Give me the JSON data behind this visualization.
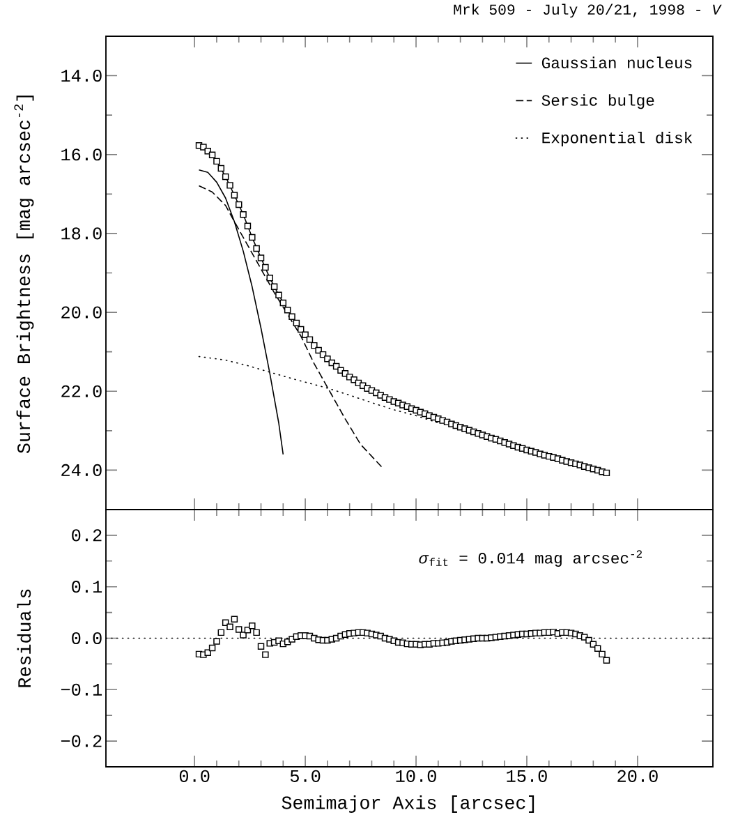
{
  "chart_data": [
    {
      "type": "scatter",
      "title": "Mrk 509 - July 20/21, 1998 - *V*",
      "ylabel": "Surface Brightness [mag arcsec$^{-2}$]",
      "xlim": [
        -4,
        23.4
      ],
      "ylim": [
        25,
        13
      ],
      "xticks": [
        0,
        5,
        10,
        15,
        20
      ],
      "yticks": [
        {
          "value": 14,
          "label": "14.0"
        },
        {
          "value": 16,
          "label": "16.0"
        },
        {
          "value": 18,
          "label": "18.0"
        },
        {
          "value": 20,
          "label": "20.0"
        },
        {
          "value": 22,
          "label": "22.0"
        },
        {
          "value": 24,
          "label": "24.0"
        }
      ],
      "tick_labels": "y",
      "legend": "top right",
      "series": [
        {
          "type": "line",
          "color": "#000000",
          "line_style": "solid",
          "name": "Gaussian nucleus",
          "x": [
            0.2,
            0.6,
            1.0,
            1.4,
            1.8,
            2.2,
            2.6,
            3.0,
            3.4,
            3.8,
            4.0
          ],
          "values": [
            16.39,
            16.45,
            16.7,
            17.1,
            17.7,
            18.45,
            19.35,
            20.4,
            21.55,
            22.8,
            23.6
          ]
        },
        {
          "type": "line",
          "color": "#000000",
          "line_style": "dashed",
          "name": "Sersic bulge",
          "x": [
            0.2,
            0.8,
            1.4,
            1.8,
            2.4,
            3.0,
            3.6,
            4.2,
            4.8,
            5.4,
            6.0,
            6.8,
            7.5,
            8.5
          ],
          "values": [
            16.79,
            16.95,
            17.29,
            17.7,
            18.3,
            18.9,
            19.5,
            20.05,
            20.6,
            21.3,
            21.9,
            22.7,
            23.35,
            23.95
          ]
        },
        {
          "type": "line",
          "color": "#000000",
          "line_style": "dotted",
          "name": "Exponential disk",
          "x": [
            0.2,
            1.4,
            2.4,
            3.3,
            4.6,
            6.0,
            7.0,
            8.0,
            9.0,
            10.0,
            11.0
          ],
          "values": [
            21.12,
            21.21,
            21.35,
            21.5,
            21.71,
            21.92,
            22.1,
            22.29,
            22.47,
            22.62,
            22.8
          ]
        },
        {
          "type": "line",
          "color": "#000000",
          "line_style": "solid",
          "x": [
            0.2,
            0.6,
            1.0,
            1.4,
            1.8,
            2.2,
            2.6,
            3.0,
            3.4,
            3.8,
            4.4,
            5.0,
            6.0,
            7.0,
            8.0,
            9.0,
            10.0,
            12.0,
            14.0,
            16.0,
            18.6
          ],
          "values": [
            15.77,
            15.91,
            16.17,
            16.56,
            17.03,
            17.52,
            18.1,
            18.62,
            19.13,
            19.56,
            20.11,
            20.57,
            21.18,
            21.64,
            21.98,
            22.26,
            22.48,
            22.91,
            23.3,
            23.65,
            24.07
          ]
        },
        {
          "color": "#000000",
          "marker": "square",
          "x": [
            0.2,
            0.4,
            0.6,
            0.8,
            1.0,
            1.2,
            1.4,
            1.6,
            1.8,
            2.0,
            2.2,
            2.4,
            2.6,
            2.8,
            3.0,
            3.2,
            3.4,
            3.6,
            3.8,
            4.0,
            4.2,
            4.4,
            4.6,
            4.8,
            5.0,
            5.2,
            5.4,
            5.6,
            5.8,
            6.0,
            6.2,
            6.4,
            6.6,
            6.8,
            7.0,
            7.2,
            7.4,
            7.6,
            7.8,
            8.0,
            8.2,
            8.4,
            8.6,
            8.8,
            9.0,
            9.2,
            9.4,
            9.6,
            9.8,
            10.0,
            10.2,
            10.4,
            10.6,
            10.8,
            11.0,
            11.2,
            11.4,
            11.6,
            11.8,
            12.0,
            12.2,
            12.4,
            12.6,
            12.8,
            13.0,
            13.2,
            13.4,
            13.6,
            13.8,
            14.0,
            14.2,
            14.4,
            14.6,
            14.8,
            15.0,
            15.2,
            15.4,
            15.6,
            15.8,
            16.0,
            16.2,
            16.4,
            16.6,
            16.8,
            17.0,
            17.2,
            17.4,
            17.6,
            17.8,
            18.0,
            18.2,
            18.4,
            18.6
          ],
          "values": [
            15.77,
            15.81,
            15.91,
            16.01,
            16.17,
            16.35,
            16.56,
            16.78,
            17.03,
            17.27,
            17.52,
            17.81,
            18.1,
            18.38,
            18.62,
            18.86,
            19.13,
            19.35,
            19.56,
            19.76,
            19.94,
            20.11,
            20.27,
            20.43,
            20.57,
            20.69,
            20.84,
            20.96,
            21.07,
            21.18,
            21.28,
            21.37,
            21.47,
            21.55,
            21.64,
            21.71,
            21.79,
            21.86,
            21.93,
            21.98,
            22.04,
            22.1,
            22.16,
            22.21,
            22.26,
            22.3,
            22.35,
            22.39,
            22.44,
            22.48,
            22.53,
            22.57,
            22.62,
            22.66,
            22.7,
            22.74,
            22.78,
            22.83,
            22.87,
            22.91,
            22.95,
            22.99,
            23.03,
            23.07,
            23.11,
            23.15,
            23.19,
            23.22,
            23.26,
            23.3,
            23.34,
            23.38,
            23.42,
            23.45,
            23.49,
            23.52,
            23.55,
            23.59,
            23.62,
            23.65,
            23.68,
            23.71,
            23.75,
            23.78,
            23.81,
            23.84,
            23.87,
            23.91,
            23.94,
            23.97,
            24.0,
            24.04,
            24.07
          ]
        }
      ]
    },
    {
      "type": "scatter",
      "xlabel": "Semimajor Axis [arcsec]",
      "ylabel": "Residuals",
      "annotations": [
        "*σ*$_{fit}$ = 0.014 mag arcsec$^{-2}$"
      ],
      "xlim": [
        -4,
        23.4
      ],
      "ylim": [
        -0.25,
        0.25
      ],
      "xticks": [
        {
          "value": 0,
          "label": "0.0"
        },
        {
          "value": 5,
          "label": "5.0"
        },
        {
          "value": 10,
          "label": "10.0"
        },
        {
          "value": 15,
          "label": "15.0"
        },
        {
          "value": 20,
          "label": "20.0"
        }
      ],
      "yticks": [
        {
          "value": -0.2,
          "label": "−0.2"
        },
        {
          "value": -0.1,
          "label": "−0.1"
        },
        {
          "value": 0,
          "label": "0.0"
        },
        {
          "value": 0.1,
          "label": "0.1"
        },
        {
          "value": 0.2,
          "label": "0.2"
        }
      ],
      "ref_lines": [
        {
          "axis": "y",
          "value": 0,
          "color": "#000000",
          "line_style": "dotted"
        }
      ],
      "series": [
        {
          "color": "#000000",
          "marker": "square",
          "x": [
            0.2,
            0.4,
            0.6,
            0.8,
            1.0,
            1.2,
            1.4,
            1.6,
            1.8,
            2.0,
            2.2,
            2.4,
            2.6,
            2.8,
            3.0,
            3.2,
            3.4,
            3.6,
            3.8,
            4.0,
            4.2,
            4.4,
            4.6,
            4.8,
            5.0,
            5.2,
            5.4,
            5.6,
            5.8,
            6.0,
            6.2,
            6.4,
            6.6,
            6.8,
            7.0,
            7.2,
            7.4,
            7.6,
            7.8,
            8.0,
            8.2,
            8.4,
            8.6,
            8.8,
            9.0,
            9.2,
            9.4,
            9.6,
            9.8,
            10.0,
            10.2,
            10.4,
            10.6,
            10.8,
            11.0,
            11.2,
            11.4,
            11.6,
            11.8,
            12.0,
            12.2,
            12.4,
            12.6,
            12.8,
            13.0,
            13.2,
            13.4,
            13.6,
            13.8,
            14.0,
            14.2,
            14.4,
            14.6,
            14.8,
            15.0,
            15.2,
            15.4,
            15.6,
            15.8,
            16.0,
            16.2,
            16.4,
            16.6,
            16.8,
            17.0,
            17.2,
            17.4,
            17.6,
            17.8,
            18.0,
            18.2,
            18.4,
            18.6
          ],
          "values": [
            -0.031,
            -0.032,
            -0.028,
            -0.019,
            -0.006,
            0.011,
            0.03,
            0.022,
            0.037,
            0.017,
            0.006,
            0.016,
            0.024,
            0.011,
            -0.016,
            -0.032,
            -0.01,
            -0.008,
            -0.005,
            -0.011,
            -0.007,
            -0.002,
            0.003,
            0.005,
            0.005,
            0.004,
            0.0,
            -0.003,
            -0.004,
            -0.004,
            -0.002,
            0.0,
            0.004,
            0.007,
            0.009,
            0.01,
            0.011,
            0.011,
            0.01,
            0.008,
            0.006,
            0.004,
            0.0,
            -0.002,
            -0.005,
            -0.008,
            -0.009,
            -0.011,
            -0.012,
            -0.012,
            -0.013,
            -0.012,
            -0.012,
            -0.01,
            -0.01,
            -0.009,
            -0.008,
            -0.006,
            -0.005,
            -0.004,
            -0.003,
            -0.002,
            -0.001,
            0.0,
            0.0,
            0.0,
            0.001,
            0.002,
            0.003,
            0.004,
            0.005,
            0.006,
            0.007,
            0.008,
            0.008,
            0.009,
            0.01,
            0.01,
            0.011,
            0.011,
            0.012,
            0.009,
            0.011,
            0.011,
            0.01,
            0.008,
            0.005,
            0.002,
            -0.004,
            -0.012,
            -0.02,
            -0.031,
            -0.043
          ]
        }
      ]
    }
  ]
}
